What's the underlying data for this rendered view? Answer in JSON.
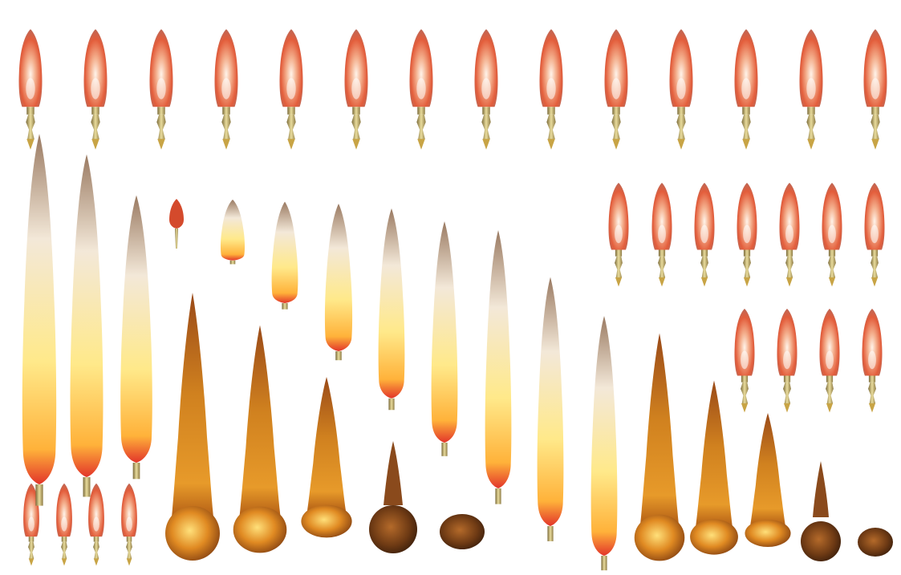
{
  "sheet": {
    "kind": "sprite-sheet",
    "background": "#ffffff",
    "palette": {
      "glow_red": "#e8553a",
      "glow_core": "#ffe6d0",
      "trail_yellow": "#ffe27a",
      "trail_smoke": "#b7a59a",
      "fire_orange": "#d9781e",
      "fire_dark": "#6a3510",
      "casing_gold": "#b7a35c"
    },
    "groups": [
      {
        "name": "idle-glow-row-large",
        "icon": "glow-missile-icon",
        "frames": 14
      },
      {
        "name": "idle-glow-grid-medium",
        "icon": "glow-missile-icon",
        "frames": 11
      },
      {
        "name": "idle-glow-row-small",
        "icon": "glow-missile-icon",
        "frames": 4
      },
      {
        "name": "launch-flame-trail",
        "icon": "flame-trail-icon",
        "frames": 12
      },
      {
        "name": "burning-trail-fade-a",
        "icon": "fire-burst-icon",
        "frames": 5
      },
      {
        "name": "burning-trail-fade-b",
        "icon": "fire-burst-icon",
        "frames": 5
      }
    ]
  }
}
